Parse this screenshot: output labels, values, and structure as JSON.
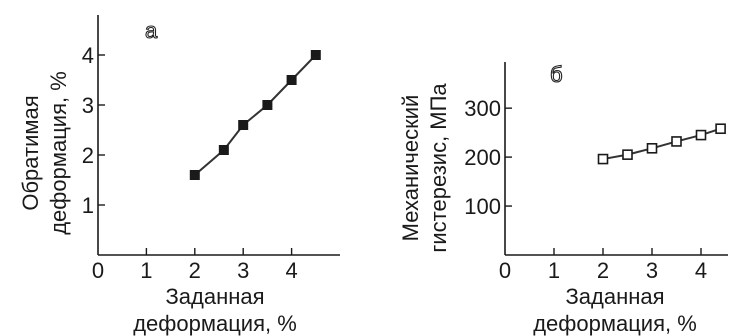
{
  "chart_data": [
    {
      "type": "line",
      "panel_label": "а",
      "ylabel_lines": [
        "Обратимая",
        "деформация, %"
      ],
      "xlabel_lines": [
        "Заданная",
        "деформация, %"
      ],
      "xlim": [
        0,
        5
      ],
      "ylim": [
        0,
        4.5
      ],
      "x_ticks": [
        "0",
        "1",
        "2",
        "3",
        "4"
      ],
      "y_ticks": [
        "1",
        "2",
        "3",
        "4"
      ],
      "marker": "filled-square",
      "series": [
        {
          "x": [
            2.0,
            2.6,
            3.0,
            3.5,
            4.0,
            4.5
          ],
          "y": [
            1.6,
            2.1,
            2.6,
            3.0,
            3.5,
            4.0
          ]
        }
      ]
    },
    {
      "type": "line",
      "panel_label": "б",
      "ylabel_lines": [
        "Механический",
        "гистерезис, МПа"
      ],
      "xlabel_lines": [
        "Заданная",
        "деформация, %"
      ],
      "xlim": [
        0,
        5
      ],
      "ylim": [
        0,
        380
      ],
      "x_ticks": [
        "0",
        "1",
        "2",
        "3",
        "4"
      ],
      "y_ticks": [
        "100",
        "200",
        "300"
      ],
      "marker": "hollow-square",
      "series": [
        {
          "x": [
            2.0,
            2.5,
            3.0,
            3.5,
            4.0,
            4.4
          ],
          "y": [
            196,
            205,
            218,
            232,
            245,
            258
          ]
        }
      ]
    }
  ]
}
